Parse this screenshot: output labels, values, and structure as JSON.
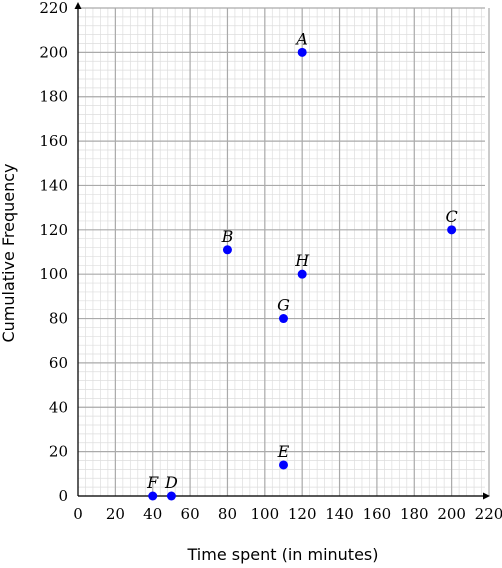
{
  "chart_data": {
    "type": "scatter",
    "xlabel": "Time spent (in minutes)",
    "ylabel": "Cumulative Frequency",
    "xlim": [
      0,
      220
    ],
    "ylim": [
      0,
      220
    ],
    "x_ticks": [
      0,
      20,
      40,
      60,
      80,
      100,
      120,
      140,
      160,
      180,
      200,
      220
    ],
    "y_ticks": [
      0,
      20,
      40,
      60,
      80,
      100,
      120,
      140,
      160,
      180,
      200,
      220
    ],
    "x_tick_labels": [
      "0",
      "20",
      "40",
      "60",
      "80",
      "100",
      "120",
      "140",
      "160",
      "180",
      "200",
      "220"
    ],
    "y_tick_labels": [
      "0",
      "20",
      "40",
      "60",
      "80",
      "100",
      "120",
      "140",
      "160",
      "180",
      "200",
      "220"
    ],
    "grid": "on",
    "minor_grid": "on",
    "points": [
      {
        "label": "A",
        "x": 120,
        "y": 200
      },
      {
        "label": "B",
        "x": 80,
        "y": 111
      },
      {
        "label": "C",
        "x": 200,
        "y": 120
      },
      {
        "label": "D",
        "x": 50,
        "y": 0
      },
      {
        "label": "E",
        "x": 110,
        "y": 14
      },
      {
        "label": "F",
        "x": 40,
        "y": 0
      },
      {
        "label": "G",
        "x": 110,
        "y": 80
      },
      {
        "label": "H",
        "x": 120,
        "y": 100
      }
    ],
    "colors": {
      "point": "#0000ff",
      "major_grid": "#aaaaaa",
      "minor_grid": "#dddddd",
      "axis": "#000000"
    }
  }
}
